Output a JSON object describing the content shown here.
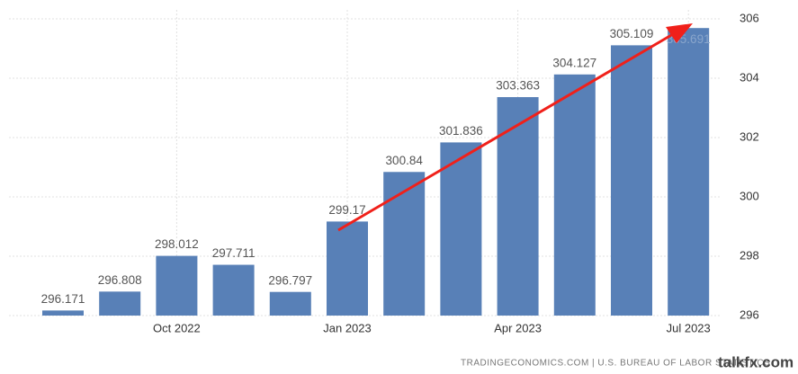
{
  "chart_data": {
    "type": "bar",
    "categories": [
      null,
      null,
      "Oct 2022",
      null,
      null,
      "Jan 2023",
      null,
      null,
      "Apr 2023",
      null,
      null,
      "Jul 2023"
    ],
    "values": [
      296.171,
      296.808,
      298.012,
      297.711,
      296.797,
      299.17,
      300.84,
      301.836,
      303.363,
      304.127,
      305.109,
      305.691
    ],
    "color": "#5880b7",
    "ylim": [
      296,
      306
    ],
    "yticks": [
      296,
      298,
      300,
      302,
      304,
      306
    ],
    "grid": true,
    "source": "TRADINGECONOMICS.COM | U.S. BUREAU OF LABOR STATISTICS",
    "watermark": "talkfx.com"
  }
}
